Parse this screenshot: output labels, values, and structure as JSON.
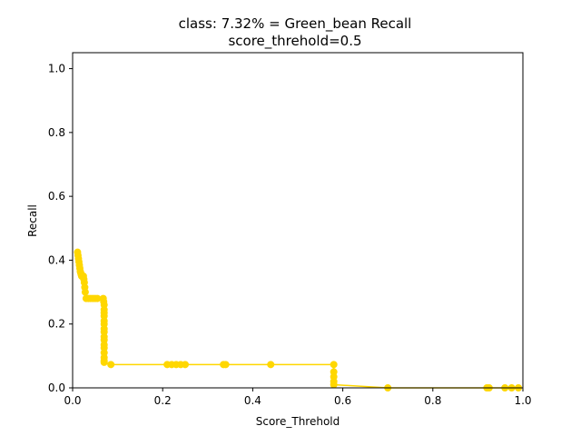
{
  "chart_data": {
    "type": "line",
    "title_line1": "class: 7.32% = Green_bean Recall",
    "title_line2": "score_threhold=0.5",
    "xlabel": "Score_Threhold",
    "ylabel": "Recall",
    "xlim": [
      0,
      1
    ],
    "ylim": [
      0,
      1.05
    ],
    "xticks": [
      "0.0",
      "0.2",
      "0.4",
      "0.6",
      "0.8",
      "1.0"
    ],
    "xtick_values": [
      0,
      0.2,
      0.4,
      0.6,
      0.8,
      1.0
    ],
    "yticks": [
      "0.0",
      "0.2",
      "0.4",
      "0.6",
      "0.8",
      "1.0"
    ],
    "ytick_values": [
      0,
      0.2,
      0.4,
      0.6,
      0.8,
      1.0
    ],
    "grid": false,
    "series_color": "#FFD700",
    "series": [
      {
        "x": [
          0.011,
          0.012,
          0.013,
          0.014,
          0.015,
          0.016,
          0.017,
          0.018,
          0.019,
          0.02,
          0.022,
          0.024,
          0.025,
          0.026,
          0.027,
          0.028,
          0.03,
          0.035,
          0.04,
          0.045,
          0.05,
          0.055,
          0.068,
          0.069,
          0.07,
          0.07,
          0.07,
          0.07,
          0.07,
          0.07,
          0.07,
          0.07,
          0.07,
          0.07,
          0.07,
          0.07,
          0.07,
          0.07,
          0.07,
          0.07,
          0.085,
          0.21,
          0.22,
          0.23,
          0.24,
          0.25,
          0.335,
          0.34,
          0.44,
          0.58,
          0.58,
          0.58,
          0.58,
          0.58,
          0.7,
          0.92,
          0.925,
          0.96,
          0.975,
          0.99
        ],
        "y": [
          0.425,
          0.415,
          0.405,
          0.395,
          0.385,
          0.375,
          0.365,
          0.36,
          0.355,
          0.35,
          0.35,
          0.35,
          0.34,
          0.33,
          0.315,
          0.3,
          0.28,
          0.28,
          0.28,
          0.28,
          0.28,
          0.28,
          0.28,
          0.27,
          0.26,
          0.245,
          0.235,
          0.225,
          0.21,
          0.2,
          0.185,
          0.175,
          0.16,
          0.15,
          0.135,
          0.125,
          0.11,
          0.095,
          0.085,
          0.08,
          0.073,
          0.073,
          0.073,
          0.073,
          0.073,
          0.073,
          0.073,
          0.073,
          0.073,
          0.073,
          0.05,
          0.035,
          0.02,
          0.01,
          0.0,
          0.0,
          0.0,
          0.0,
          0.0,
          0.0
        ]
      }
    ]
  }
}
